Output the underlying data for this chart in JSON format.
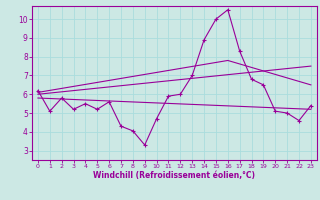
{
  "xlabel": "Windchill (Refroidissement éolien,°C)",
  "bg_color": "#cce8e4",
  "line_color": "#990099",
  "grid_color": "#aadddd",
  "xlim": [
    -0.5,
    23.5
  ],
  "ylim": [
    2.5,
    10.7
  ],
  "xticks": [
    0,
    1,
    2,
    3,
    4,
    5,
    6,
    7,
    8,
    9,
    10,
    11,
    12,
    13,
    14,
    15,
    16,
    17,
    18,
    19,
    20,
    21,
    22,
    23
  ],
  "yticks": [
    3,
    4,
    5,
    6,
    7,
    8,
    9,
    10
  ],
  "line1_x": [
    0,
    1,
    2,
    3,
    4,
    5,
    6,
    7,
    8,
    9,
    10,
    11,
    12,
    13,
    14,
    15,
    16,
    17,
    18,
    19,
    20,
    21,
    22,
    23
  ],
  "line1_y": [
    6.2,
    5.1,
    5.8,
    5.2,
    5.5,
    5.2,
    5.6,
    4.3,
    4.05,
    3.3,
    4.7,
    5.9,
    6.0,
    7.0,
    8.9,
    10.0,
    10.5,
    8.3,
    6.8,
    6.5,
    5.1,
    5.0,
    4.6,
    5.4
  ],
  "line2_x": [
    0,
    23
  ],
  "line2_y": [
    6.0,
    7.5
  ],
  "line3_x": [
    0,
    23
  ],
  "line3_y": [
    5.8,
    5.2
  ],
  "line4_x": [
    0,
    16,
    23
  ],
  "line4_y": [
    6.1,
    7.8,
    6.5
  ]
}
